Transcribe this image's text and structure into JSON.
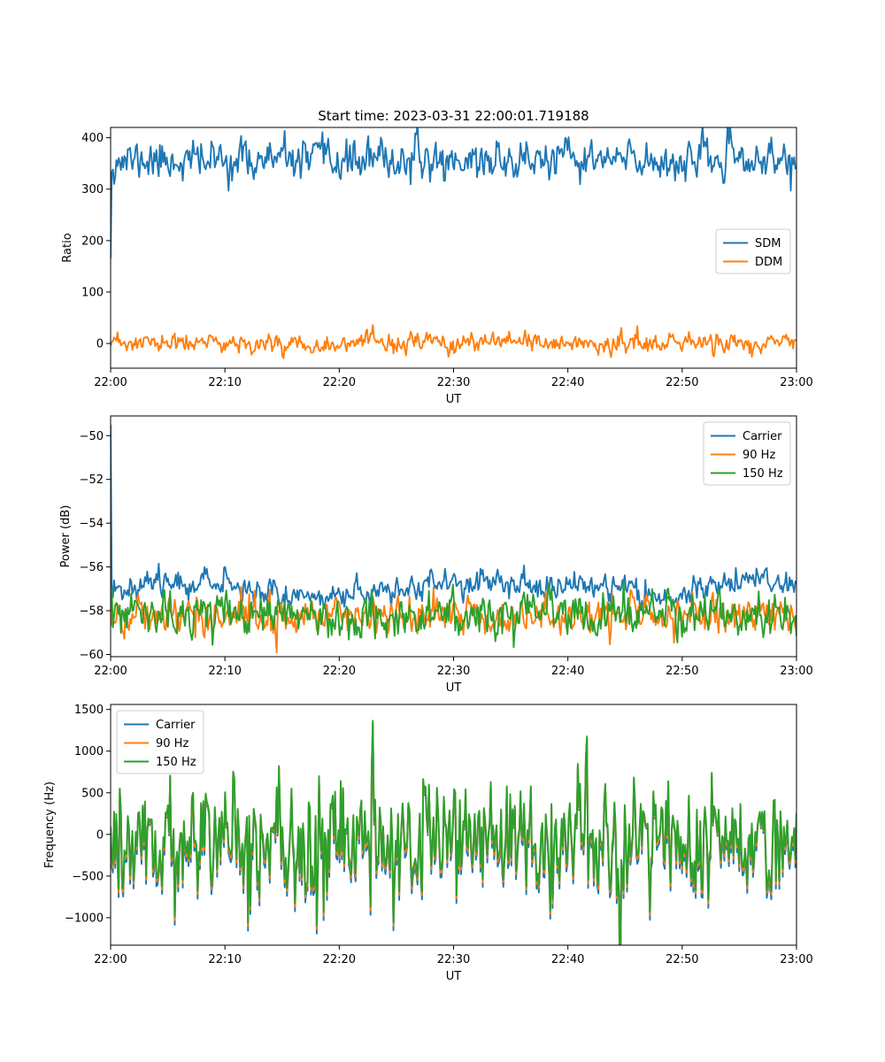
{
  "chart_data": [
    {
      "type": "line",
      "title": "Start time: 2023-03-31 22:00:01.719188",
      "xlabel": "UT",
      "ylabel": "Ratio",
      "xlim": [
        "22:00",
        "23:00"
      ],
      "ylim": [
        -48,
        420
      ],
      "xticks": [
        "22:00",
        "22:10",
        "22:20",
        "22:30",
        "22:40",
        "22:50",
        "23:00"
      ],
      "yticks": [
        0,
        100,
        200,
        300,
        400
      ],
      "grid": false,
      "legend": "center-right",
      "series": [
        {
          "name": "SDM",
          "color": "#1f77b4",
          "start": 165,
          "mean": 356,
          "spread": 18,
          "seed": 11
        },
        {
          "name": "DDM",
          "color": "#ff7f0e",
          "start": -5,
          "mean": 0,
          "spread": 9,
          "seed": 23
        }
      ]
    },
    {
      "type": "line",
      "title": "",
      "xlabel": "UT",
      "ylabel": "Power (dB)",
      "xlim": [
        "22:00",
        "23:00"
      ],
      "ylim": [
        -60.1,
        -49.1
      ],
      "xticks": [
        "22:00",
        "22:10",
        "22:20",
        "22:30",
        "22:40",
        "22:50",
        "23:00"
      ],
      "yticks": [
        -60,
        -58,
        -56,
        -54,
        -52,
        -50
      ],
      "grid": false,
      "legend": "top-right",
      "series": [
        {
          "name": "Carrier",
          "color": "#1f77b4",
          "start": -49.5,
          "mean": -57.0,
          "spread": 0.28,
          "seed": 37
        },
        {
          "name": "90 Hz",
          "color": "#ff7f0e",
          "start": -57.8,
          "mean": -58.2,
          "spread": 0.42,
          "seed": 41
        },
        {
          "name": "150 Hz",
          "color": "#2ca02c",
          "start": -58.0,
          "mean": -58.2,
          "spread": 0.45,
          "seed": 53
        }
      ]
    },
    {
      "type": "line",
      "title": "",
      "xlabel": "UT",
      "ylabel": "Frequency (Hz)",
      "xlim": [
        "22:00",
        "23:00"
      ],
      "ylim": [
        -1330,
        1560
      ],
      "xticks": [
        "22:00",
        "22:10",
        "22:20",
        "22:30",
        "22:40",
        "22:50",
        "23:00"
      ],
      "yticks": [
        -1000,
        -500,
        0,
        500,
        1000,
        1500
      ],
      "grid": false,
      "legend": "top-left",
      "series": [
        {
          "name": "Carrier",
          "color": "#1f77b4",
          "start": 0,
          "mean": -30,
          "spread": 380,
          "seed": 71,
          "offset": -60
        },
        {
          "name": "90 Hz",
          "color": "#ff7f0e",
          "start": 0,
          "mean": -30,
          "spread": 380,
          "seed": 71,
          "offset": -25
        },
        {
          "name": "150 Hz",
          "color": "#2ca02c",
          "start": 0,
          "mean": -30,
          "spread": 380,
          "seed": 71,
          "offset": 0
        }
      ]
    }
  ]
}
